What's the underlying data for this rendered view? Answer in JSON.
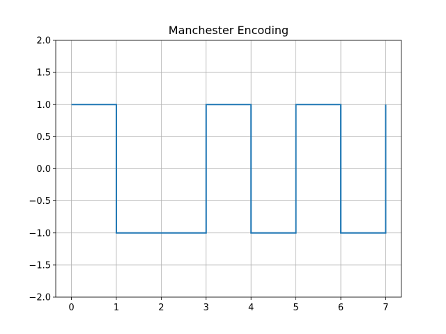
{
  "chart_data": {
    "type": "line",
    "drawstyle": "steps-post",
    "title": "Manchester Encoding",
    "xlabel": "",
    "ylabel": "",
    "x": [
      0,
      1,
      2,
      3,
      4,
      5,
      6,
      7
    ],
    "series": [
      {
        "values": [
          1,
          -1,
          -1,
          1,
          -1,
          1,
          -1,
          1
        ],
        "color": "#1f77b4"
      }
    ],
    "xlim": [
      -0.35,
      7.35
    ],
    "ylim": [
      -2.0,
      2.0
    ],
    "xticks": [
      0,
      1,
      2,
      3,
      4,
      5,
      6,
      7
    ],
    "xtick_labels": [
      "0",
      "1",
      "2",
      "3",
      "4",
      "5",
      "6",
      "7"
    ],
    "yticks": [
      -2.0,
      -1.5,
      -1.0,
      -0.5,
      0.0,
      0.5,
      1.0,
      1.5,
      2.0
    ],
    "ytick_labels": [
      "−2.0",
      "−1.5",
      "−1.0",
      "−0.5",
      "0.0",
      "0.5",
      "1.0",
      "1.5",
      "2.0"
    ],
    "grid": true
  }
}
